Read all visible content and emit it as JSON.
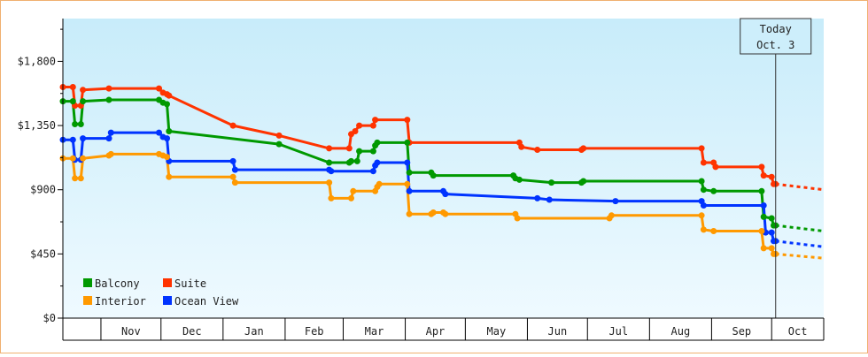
{
  "chart_data": {
    "type": "line",
    "ylim": [
      0,
      2100
    ],
    "yticks": [
      {
        "value": 0,
        "label": "$0"
      },
      {
        "value": 450,
        "label": "$450"
      },
      {
        "value": 900,
        "label": "$900"
      },
      {
        "value": 1350,
        "label": "$1,350"
      },
      {
        "value": 1800,
        "label": "$1,800"
      }
    ],
    "xlim": [
      "2023-10-13",
      "2024-10-27"
    ],
    "months": [
      {
        "label": "Nov",
        "start": "2023-11-01",
        "end": "2023-12-01"
      },
      {
        "label": "Dec",
        "start": "2023-12-01",
        "end": "2024-01-01"
      },
      {
        "label": "Jan",
        "start": "2024-01-01",
        "end": "2024-02-01"
      },
      {
        "label": "Feb",
        "start": "2024-02-01",
        "end": "2024-03-01"
      },
      {
        "label": "Mar",
        "start": "2024-03-01",
        "end": "2024-04-01"
      },
      {
        "label": "Apr",
        "start": "2024-04-01",
        "end": "2024-05-01"
      },
      {
        "label": "May",
        "start": "2024-05-01",
        "end": "2024-06-01"
      },
      {
        "label": "Jun",
        "start": "2024-06-01",
        "end": "2024-07-01"
      },
      {
        "label": "Jul",
        "start": "2024-07-01",
        "end": "2024-08-01"
      },
      {
        "label": "Aug",
        "start": "2024-08-01",
        "end": "2024-09-01"
      },
      {
        "label": "Sep",
        "start": "2024-09-01",
        "end": "2024-10-01"
      },
      {
        "label": "Oct",
        "start": "2024-10-01",
        "end": "2024-10-27"
      }
    ],
    "today": {
      "line1": "Today",
      "line2": "Oct. 3",
      "date": "2024-10-03"
    },
    "legend": {
      "placement": "bottom-left"
    },
    "series": [
      {
        "name": "Suite",
        "color": "#ff3300",
        "points": [
          [
            "2023-10-13",
            1620
          ],
          [
            "2023-10-18",
            1620
          ],
          [
            "2023-10-19",
            1490
          ],
          [
            "2023-10-22",
            1490
          ],
          [
            "2023-10-23",
            1600
          ],
          [
            "2023-11-05",
            1610
          ],
          [
            "2023-11-30",
            1610
          ],
          [
            "2023-12-02",
            1580
          ],
          [
            "2023-12-04",
            1570
          ],
          [
            "2023-12-05",
            1560
          ],
          [
            "2024-01-06",
            1350
          ],
          [
            "2024-01-29",
            1280
          ],
          [
            "2024-02-23",
            1190
          ],
          [
            "2024-03-04",
            1190
          ],
          [
            "2024-03-05",
            1290
          ],
          [
            "2024-03-07",
            1310
          ],
          [
            "2024-03-09",
            1350
          ],
          [
            "2024-03-16",
            1350
          ],
          [
            "2024-03-17",
            1390
          ],
          [
            "2024-04-02",
            1390
          ],
          [
            "2024-04-03",
            1230
          ],
          [
            "2024-05-28",
            1230
          ],
          [
            "2024-05-29",
            1200
          ],
          [
            "2024-06-06",
            1180
          ],
          [
            "2024-06-28",
            1180
          ],
          [
            "2024-06-29",
            1190
          ],
          [
            "2024-08-27",
            1190
          ],
          [
            "2024-08-28",
            1090
          ],
          [
            "2024-09-02",
            1090
          ],
          [
            "2024-09-03",
            1060
          ],
          [
            "2024-09-26",
            1060
          ],
          [
            "2024-09-27",
            1000
          ],
          [
            "2024-10-01",
            990
          ],
          [
            "2024-10-02",
            940
          ],
          [
            "2024-10-03",
            940
          ]
        ],
        "forecast": [
          [
            "2024-10-03",
            940
          ],
          [
            "2024-10-27",
            900
          ]
        ]
      },
      {
        "name": "Balcony",
        "color": "#009900",
        "points": [
          [
            "2023-10-13",
            1520
          ],
          [
            "2023-10-18",
            1520
          ],
          [
            "2023-10-19",
            1360
          ],
          [
            "2023-10-22",
            1360
          ],
          [
            "2023-10-23",
            1520
          ],
          [
            "2023-11-05",
            1530
          ],
          [
            "2023-11-30",
            1530
          ],
          [
            "2023-12-02",
            1510
          ],
          [
            "2023-12-04",
            1500
          ],
          [
            "2023-12-05",
            1310
          ],
          [
            "2024-01-29",
            1220
          ],
          [
            "2024-02-23",
            1090
          ],
          [
            "2024-03-04",
            1090
          ],
          [
            "2024-03-05",
            1100
          ],
          [
            "2024-03-08",
            1100
          ],
          [
            "2024-03-09",
            1170
          ],
          [
            "2024-03-16",
            1170
          ],
          [
            "2024-03-17",
            1210
          ],
          [
            "2024-03-18",
            1230
          ],
          [
            "2024-04-02",
            1230
          ],
          [
            "2024-04-03",
            1020
          ],
          [
            "2024-04-14",
            1020
          ],
          [
            "2024-04-15",
            1000
          ],
          [
            "2024-05-25",
            1000
          ],
          [
            "2024-05-26",
            980
          ],
          [
            "2024-05-28",
            970
          ],
          [
            "2024-06-13",
            950
          ],
          [
            "2024-06-28",
            950
          ],
          [
            "2024-06-29",
            960
          ],
          [
            "2024-08-27",
            960
          ],
          [
            "2024-08-28",
            900
          ],
          [
            "2024-09-02",
            890
          ],
          [
            "2024-09-26",
            890
          ],
          [
            "2024-09-27",
            710
          ],
          [
            "2024-10-01",
            700
          ],
          [
            "2024-10-02",
            650
          ],
          [
            "2024-10-03",
            650
          ]
        ],
        "forecast": [
          [
            "2024-10-03",
            650
          ],
          [
            "2024-10-27",
            610
          ]
        ]
      },
      {
        "name": "Ocean View",
        "color": "#0033ff",
        "points": [
          [
            "2023-10-13",
            1250
          ],
          [
            "2023-10-18",
            1250
          ],
          [
            "2023-10-19",
            1110
          ],
          [
            "2023-10-22",
            1110
          ],
          [
            "2023-10-23",
            1260
          ],
          [
            "2023-11-05",
            1260
          ],
          [
            "2023-11-06",
            1300
          ],
          [
            "2023-11-30",
            1300
          ],
          [
            "2023-12-02",
            1270
          ],
          [
            "2023-12-04",
            1260
          ],
          [
            "2023-12-05",
            1100
          ],
          [
            "2024-01-06",
            1100
          ],
          [
            "2024-01-07",
            1040
          ],
          [
            "2024-02-23",
            1040
          ],
          [
            "2024-02-24",
            1030
          ],
          [
            "2024-03-16",
            1030
          ],
          [
            "2024-03-17",
            1070
          ],
          [
            "2024-03-18",
            1090
          ],
          [
            "2024-04-02",
            1090
          ],
          [
            "2024-04-03",
            890
          ],
          [
            "2024-04-20",
            890
          ],
          [
            "2024-04-21",
            870
          ],
          [
            "2024-06-06",
            840
          ],
          [
            "2024-06-12",
            830
          ],
          [
            "2024-07-15",
            820
          ],
          [
            "2024-08-27",
            820
          ],
          [
            "2024-08-28",
            790
          ],
          [
            "2024-09-27",
            790
          ],
          [
            "2024-09-28",
            600
          ],
          [
            "2024-10-01",
            600
          ],
          [
            "2024-10-02",
            540
          ],
          [
            "2024-10-03",
            540
          ]
        ],
        "forecast": [
          [
            "2024-10-03",
            540
          ],
          [
            "2024-10-27",
            500
          ]
        ]
      },
      {
        "name": "Interior",
        "color": "#ff9900",
        "points": [
          [
            "2023-10-13",
            1120
          ],
          [
            "2023-10-18",
            1120
          ],
          [
            "2023-10-19",
            980
          ],
          [
            "2023-10-22",
            980
          ],
          [
            "2023-10-23",
            1120
          ],
          [
            "2023-11-05",
            1140
          ],
          [
            "2023-11-06",
            1150
          ],
          [
            "2023-11-30",
            1150
          ],
          [
            "2023-12-02",
            1140
          ],
          [
            "2023-12-04",
            1130
          ],
          [
            "2023-12-05",
            990
          ],
          [
            "2024-01-06",
            990
          ],
          [
            "2024-01-07",
            950
          ],
          [
            "2024-02-23",
            950
          ],
          [
            "2024-02-24",
            840
          ],
          [
            "2024-03-05",
            840
          ],
          [
            "2024-03-06",
            890
          ],
          [
            "2024-03-17",
            890
          ],
          [
            "2024-03-18",
            920
          ],
          [
            "2024-03-19",
            940
          ],
          [
            "2024-04-02",
            940
          ],
          [
            "2024-04-03",
            730
          ],
          [
            "2024-04-14",
            730
          ],
          [
            "2024-04-15",
            740
          ],
          [
            "2024-04-20",
            740
          ],
          [
            "2024-04-21",
            730
          ],
          [
            "2024-05-26",
            730
          ],
          [
            "2024-05-27",
            700
          ],
          [
            "2024-07-12",
            700
          ],
          [
            "2024-07-13",
            720
          ],
          [
            "2024-08-27",
            720
          ],
          [
            "2024-08-28",
            620
          ],
          [
            "2024-09-02",
            610
          ],
          [
            "2024-09-26",
            610
          ],
          [
            "2024-09-27",
            490
          ],
          [
            "2024-10-01",
            490
          ],
          [
            "2024-10-02",
            450
          ],
          [
            "2024-10-03",
            450
          ]
        ],
        "forecast": [
          [
            "2024-10-03",
            450
          ],
          [
            "2024-10-27",
            420
          ]
        ]
      }
    ]
  }
}
